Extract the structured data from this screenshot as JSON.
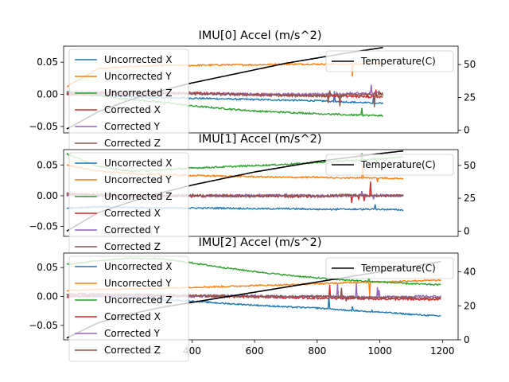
{
  "chart_data": [
    {
      "type": "line",
      "title": "IMU[0] Accel (m/s^2)",
      "xlim": [
        -10,
        1250
      ],
      "ylim": [
        -0.06,
        0.075
      ],
      "yticks": [
        -0.05,
        0.0,
        0.05
      ],
      "ytick_labels": [
        "−0.05",
        "0.00",
        "0.05"
      ],
      "y2lim": [
        -2,
        64
      ],
      "y2ticks": [
        0,
        25,
        50
      ],
      "y2tick_labels": [
        "0",
        "25",
        "50"
      ],
      "x_end": 1010,
      "series": [
        {
          "name": "Uncorrected X",
          "color": "#1f77b4",
          "x": [
            0,
            100,
            200,
            300,
            400,
            500,
            600,
            700,
            800,
            900,
            1010
          ],
          "values": [
            0.0,
            -0.002,
            -0.004,
            -0.005,
            -0.006,
            -0.007,
            -0.008,
            -0.009,
            -0.01,
            -0.012,
            -0.014
          ]
        },
        {
          "name": "Uncorrected Y",
          "color": "#ff7f0e",
          "x": [
            0,
            100,
            200,
            300,
            400,
            500,
            600,
            700,
            800,
            900,
            1010
          ],
          "values": [
            0.012,
            0.04,
            0.043,
            0.045,
            0.045,
            0.046,
            0.046,
            0.047,
            0.047,
            0.047,
            0.048
          ]
        },
        {
          "name": "Uncorrected Z",
          "color": "#2ca02c",
          "x": [
            0,
            100,
            200,
            300,
            400,
            500,
            600,
            700,
            800,
            900,
            1010
          ],
          "values": [
            0.005,
            -0.002,
            -0.008,
            -0.012,
            -0.018,
            -0.022,
            -0.026,
            -0.028,
            -0.03,
            -0.032,
            -0.033
          ]
        },
        {
          "name": "Corrected X",
          "color": "#d62728",
          "x": [
            0,
            100,
            200,
            300,
            400,
            500,
            600,
            700,
            800,
            900,
            1010
          ],
          "values": [
            0.0,
            0.0,
            0.001,
            0.002,
            0.002,
            0.001,
            0.0,
            -0.001,
            -0.002,
            -0.003,
            -0.004
          ]
        },
        {
          "name": "Corrected Y",
          "color": "#9467bd",
          "x": [
            0,
            100,
            200,
            300,
            400,
            500,
            600,
            700,
            800,
            900,
            1010
          ],
          "values": [
            0.003,
            0.003,
            0.002,
            0.002,
            0.001,
            0.001,
            0.0,
            0.0,
            0.0,
            0.001,
            0.002
          ]
        },
        {
          "name": "Corrected Z",
          "color": "#8c564b",
          "x": [
            0,
            100,
            200,
            300,
            400,
            500,
            600,
            700,
            800,
            900,
            1010
          ],
          "values": [
            0.001,
            0.002,
            0.003,
            0.002,
            0.001,
            0.0,
            -0.001,
            -0.002,
            -0.002,
            -0.001,
            0.0
          ]
        }
      ],
      "temperature": {
        "name": "Temperature(C)",
        "color": "#000000",
        "x": [
          0,
          100,
          200,
          300,
          400,
          500,
          600,
          700,
          800,
          900,
          1010
        ],
        "values": [
          1,
          14,
          23,
          30,
          36,
          41,
          46,
          51,
          55,
          59,
          63
        ]
      },
      "legend": "upper-left",
      "legend2": "upper-right"
    },
    {
      "type": "line",
      "title": "IMU[1] Accel (m/s^2)",
      "xlim": [
        -10,
        1250
      ],
      "ylim": [
        -0.066,
        0.075
      ],
      "yticks": [
        -0.05,
        0.0,
        0.05
      ],
      "ytick_labels": [
        "−0.05",
        "0.00",
        "0.05"
      ],
      "y2lim": [
        -4,
        62
      ],
      "y2ticks": [
        0,
        25,
        50
      ],
      "y2tick_labels": [
        "0",
        "25",
        "50"
      ],
      "x_end": 1075,
      "series": [
        {
          "name": "Uncorrected X",
          "color": "#1f77b4",
          "x": [
            0,
            100,
            200,
            300,
            400,
            500,
            600,
            700,
            800,
            900,
            1000,
            1075
          ],
          "values": [
            -0.02,
            -0.018,
            -0.019,
            -0.02,
            -0.02,
            -0.02,
            -0.021,
            -0.021,
            -0.022,
            -0.022,
            -0.022,
            -0.023
          ]
        },
        {
          "name": "Uncorrected Y",
          "color": "#ff7f0e",
          "x": [
            0,
            100,
            200,
            300,
            400,
            500,
            600,
            700,
            800,
            900,
            1000,
            1075
          ],
          "values": [
            0.05,
            0.04,
            0.036,
            0.034,
            0.033,
            0.032,
            0.031,
            0.03,
            0.03,
            0.029,
            0.029,
            0.028
          ]
        },
        {
          "name": "Uncorrected Z",
          "color": "#2ca02c",
          "x": [
            0,
            100,
            200,
            300,
            400,
            500,
            600,
            700,
            800,
            900,
            1000,
            1075
          ],
          "values": [
            0.068,
            0.048,
            0.04,
            0.042,
            0.045,
            0.047,
            0.049,
            0.051,
            0.054,
            0.057,
            0.06,
            0.063
          ]
        },
        {
          "name": "Corrected X",
          "color": "#d62728",
          "x": [
            0,
            100,
            200,
            300,
            400,
            500,
            600,
            700,
            800,
            900,
            1000,
            1075
          ],
          "values": [
            0.002,
            0.001,
            0.0,
            0.0,
            -0.001,
            0.0,
            0.0,
            -0.001,
            -0.001,
            0.0,
            0.0,
            0.0
          ]
        },
        {
          "name": "Corrected Y",
          "color": "#9467bd",
          "x": [
            0,
            100,
            200,
            300,
            400,
            500,
            600,
            700,
            800,
            900,
            1000,
            1075
          ],
          "values": [
            0.001,
            0.0,
            -0.001,
            -0.001,
            0.0,
            0.0,
            0.001,
            0.001,
            0.0,
            0.0,
            0.001,
            0.0
          ]
        },
        {
          "name": "Corrected Z",
          "color": "#8c564b",
          "x": [
            0,
            100,
            200,
            300,
            400,
            500,
            600,
            700,
            800,
            900,
            1000,
            1075
          ],
          "values": [
            0.003,
            0.002,
            0.001,
            0.0,
            0.001,
            0.0,
            -0.001,
            0.0,
            0.0,
            0.001,
            0.0,
            0.0
          ]
        }
      ],
      "temperature": {
        "name": "Temperature(C)",
        "color": "#000000",
        "x": [
          0,
          100,
          200,
          300,
          400,
          500,
          600,
          700,
          800,
          900,
          1000,
          1075
        ],
        "values": [
          0,
          14,
          22,
          29,
          35,
          40,
          45,
          49,
          53,
          56,
          59,
          61
        ]
      },
      "legend": "upper-left",
      "legend2": "upper-right"
    },
    {
      "type": "line",
      "title": "IMU[2] Accel (m/s^2)",
      "xlim": [
        -10,
        1250
      ],
      "ylim": [
        -0.075,
        0.075
      ],
      "yticks": [
        -0.05,
        0.0,
        0.05
      ],
      "ytick_labels": [
        "−0.05",
        "0.00",
        "0.05"
      ],
      "y2lim": [
        0,
        51
      ],
      "y2ticks": [
        0,
        20,
        40
      ],
      "y2tick_labels": [
        "0",
        "20",
        "40"
      ],
      "x_end": 1195,
      "xticks": [
        400,
        600,
        800,
        1000,
        1200
      ],
      "xtick_labels": [
        "400",
        "600",
        "800",
        "1000",
        "1200"
      ],
      "series": [
        {
          "name": "Uncorrected X",
          "color": "#1f77b4",
          "x": [
            0,
            100,
            200,
            300,
            400,
            500,
            600,
            700,
            800,
            900,
            1000,
            1100,
            1195
          ],
          "values": [
            0.0,
            0.0,
            -0.002,
            -0.005,
            -0.008,
            -0.012,
            -0.015,
            -0.018,
            -0.02,
            -0.024,
            -0.027,
            -0.031,
            -0.034
          ]
        },
        {
          "name": "Uncorrected Y",
          "color": "#ff7f0e",
          "x": [
            0,
            100,
            200,
            300,
            400,
            500,
            600,
            700,
            800,
            900,
            1000,
            1100,
            1195
          ],
          "values": [
            0.01,
            0.012,
            0.013,
            0.014,
            0.016,
            0.017,
            0.019,
            0.02,
            0.022,
            0.024,
            0.025,
            0.027,
            0.028
          ]
        },
        {
          "name": "Uncorrected Z",
          "color": "#2ca02c",
          "x": [
            0,
            100,
            200,
            300,
            400,
            500,
            600,
            700,
            800,
            900,
            1000,
            1100,
            1195
          ],
          "values": [
            0.055,
            0.062,
            0.066,
            0.065,
            0.058,
            0.05,
            0.043,
            0.037,
            0.032,
            0.028,
            0.025,
            0.022,
            0.02
          ]
        },
        {
          "name": "Corrected X",
          "color": "#d62728",
          "x": [
            0,
            100,
            200,
            300,
            400,
            500,
            600,
            700,
            800,
            900,
            1000,
            1100,
            1195
          ],
          "values": [
            0.0,
            0.001,
            0.002,
            0.002,
            0.001,
            0.0,
            -0.001,
            -0.002,
            -0.003,
            -0.003,
            -0.004,
            -0.005,
            -0.005
          ]
        },
        {
          "name": "Corrected Y",
          "color": "#9467bd",
          "x": [
            0,
            100,
            200,
            300,
            400,
            500,
            600,
            700,
            800,
            900,
            1000,
            1100,
            1195
          ],
          "values": [
            0.002,
            0.002,
            0.001,
            0.0,
            0.0,
            0.001,
            0.001,
            0.0,
            0.0,
            -0.001,
            -0.001,
            0.0,
            0.0
          ]
        },
        {
          "name": "Corrected Z",
          "color": "#8c564b",
          "x": [
            0,
            100,
            200,
            300,
            400,
            500,
            600,
            700,
            800,
            900,
            1000,
            1100,
            1195
          ],
          "values": [
            0.004,
            0.004,
            0.003,
            0.002,
            0.001,
            0.001,
            0.0,
            0.0,
            0.0,
            -0.001,
            -0.002,
            -0.002,
            -0.003
          ]
        }
      ],
      "temperature": {
        "name": "Temperature(C)",
        "color": "#000000",
        "x": [
          0,
          100,
          200,
          300,
          400,
          500,
          600,
          700,
          800,
          900,
          1000,
          1100,
          1195
        ],
        "values": [
          1,
          10,
          15,
          19,
          22,
          25,
          28,
          31,
          34,
          37,
          40,
          43,
          46
        ]
      },
      "legend": "upper-left",
      "legend2": "upper-right"
    }
  ]
}
